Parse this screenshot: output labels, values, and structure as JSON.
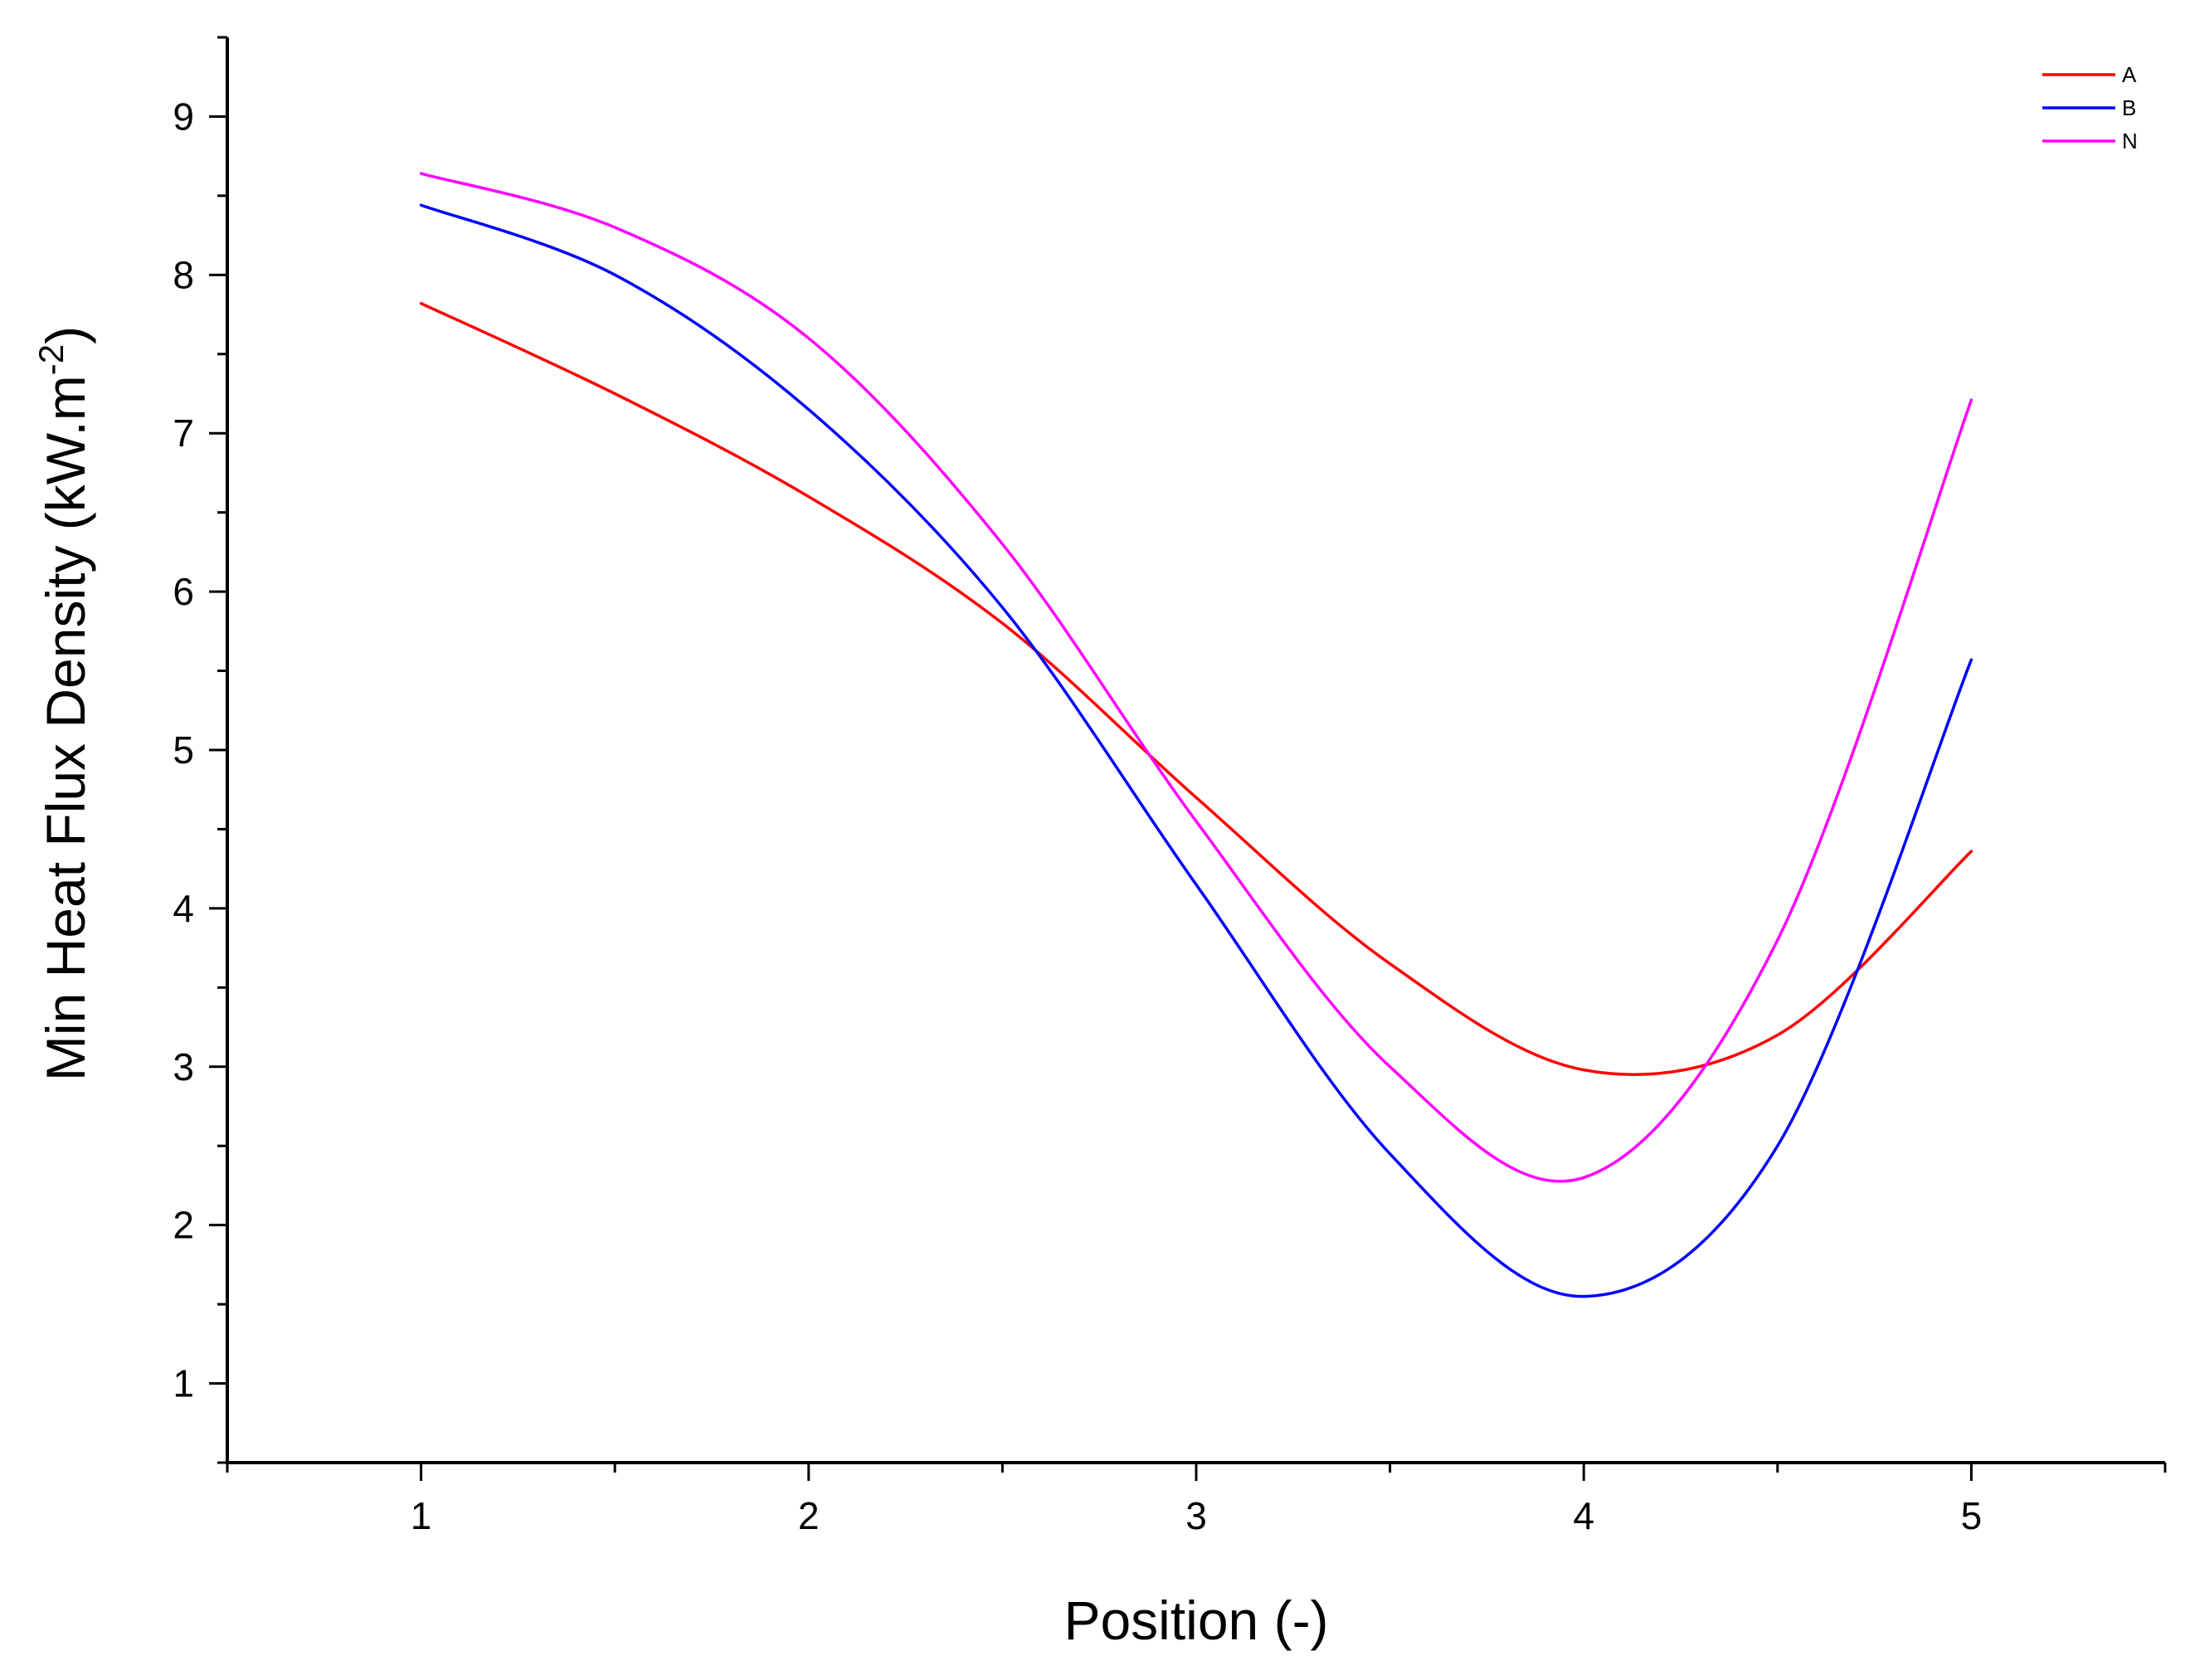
{
  "chart_data": {
    "type": "line",
    "xlabel": "Position (-)",
    "ylabel_main": "Min Heat Flux Density (kW.m",
    "ylabel_sup": "-2",
    "ylabel_close": ")",
    "xlim": [
      0.5,
      5.5
    ],
    "ylim": [
      0.5,
      9.5
    ],
    "xticks": [
      1,
      2,
      3,
      4,
      5
    ],
    "yticks": [
      1,
      2,
      3,
      4,
      5,
      6,
      7,
      8,
      9
    ],
    "x_minor_step": 0.5,
    "y_minor_step": 0.5,
    "grid": false,
    "legend_position": "top-right",
    "series": [
      {
        "name": "A",
        "color": "#ff0000",
        "x": [
          1,
          1.5,
          2,
          2.5,
          3,
          3.5,
          4,
          4.5,
          5
        ],
        "y": [
          7.82,
          7.25,
          6.6,
          5.8,
          4.7,
          3.65,
          2.98,
          3.2,
          4.36
        ]
      },
      {
        "name": "B",
        "color": "#0000ff",
        "x": [
          1,
          1.5,
          2,
          2.5,
          3,
          3.5,
          4,
          4.5,
          5
        ],
        "y": [
          8.44,
          8.0,
          7.15,
          5.9,
          4.15,
          2.45,
          1.55,
          2.5,
          5.57
        ]
      },
      {
        "name": "N",
        "color": "#ff00ff",
        "x": [
          1,
          1.5,
          2,
          2.5,
          3,
          3.5,
          4,
          4.5,
          5
        ],
        "y": [
          8.64,
          8.3,
          7.6,
          6.3,
          4.55,
          3.0,
          2.3,
          3.8,
          7.21
        ]
      }
    ]
  }
}
